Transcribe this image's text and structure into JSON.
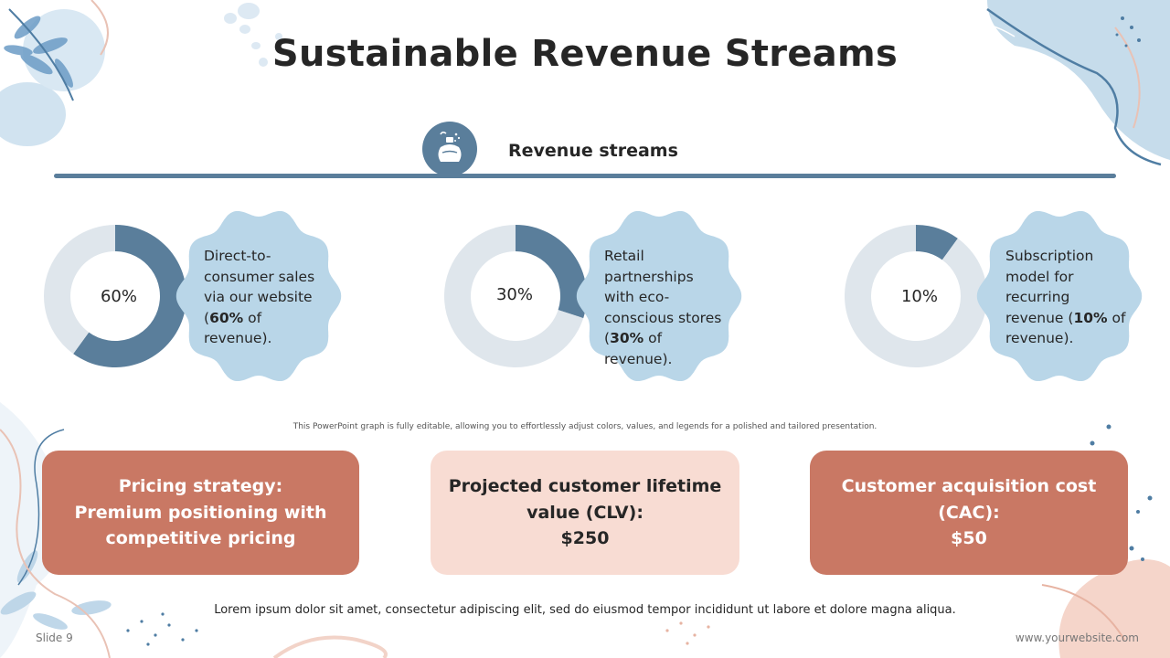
{
  "title": "Sustainable Revenue Streams",
  "section_label": "Revenue streams",
  "section_icon": "perfume-bottle-icon",
  "colors": {
    "accent_blue": "#5a7e9b",
    "light_ring": "#dfe6ec",
    "blob_blue": "#b9d6e8",
    "terracotta": "#c97864",
    "blush": "#f8dcd3"
  },
  "chart_data": [
    {
      "type": "pie",
      "donut": true,
      "title": "",
      "slices": [
        {
          "label": "",
          "value": 60
        },
        {
          "label": "",
          "value": 40
        }
      ],
      "center_label": "60%",
      "description": {
        "pre": "Direct-to-consumer sales via our website (",
        "bold": "60%",
        "post": " of revenue)."
      }
    },
    {
      "type": "pie",
      "donut": true,
      "title": "",
      "slices": [
        {
          "label": "",
          "value": 30
        },
        {
          "label": "",
          "value": 70
        }
      ],
      "center_label": "30%",
      "description": {
        "pre": "Retail partnerships with eco-conscious stores (",
        "bold": "30%",
        "post": " of revenue)."
      }
    },
    {
      "type": "pie",
      "donut": true,
      "title": "",
      "slices": [
        {
          "label": "",
          "value": 10
        },
        {
          "label": "",
          "value": 90
        }
      ],
      "center_label": "10%",
      "description": {
        "pre": "Subscription model for recurring revenue (",
        "bold": "10%",
        "post": " of revenue)."
      }
    }
  ],
  "note": "This PowerPoint graph is fully editable, allowing you to effortlessly adjust colors, values, and legends for a polished and tailored presentation.",
  "cards": [
    {
      "lines": [
        "Pricing strategy:",
        "Premium positioning with",
        "competitive pricing"
      ]
    },
    {
      "lines": [
        "Projected customer lifetime",
        "value (CLV):",
        "$250"
      ]
    },
    {
      "lines": [
        "Customer acquisition cost",
        "(CAC):",
        "$50"
      ]
    }
  ],
  "footer_text": "Lorem ipsum dolor sit amet, consectetur adipiscing elit, sed do eiusmod tempor incididunt ut labore et dolore magna aliqua.",
  "slide_number": "Slide 9",
  "website": "www.yourwebsite.com"
}
